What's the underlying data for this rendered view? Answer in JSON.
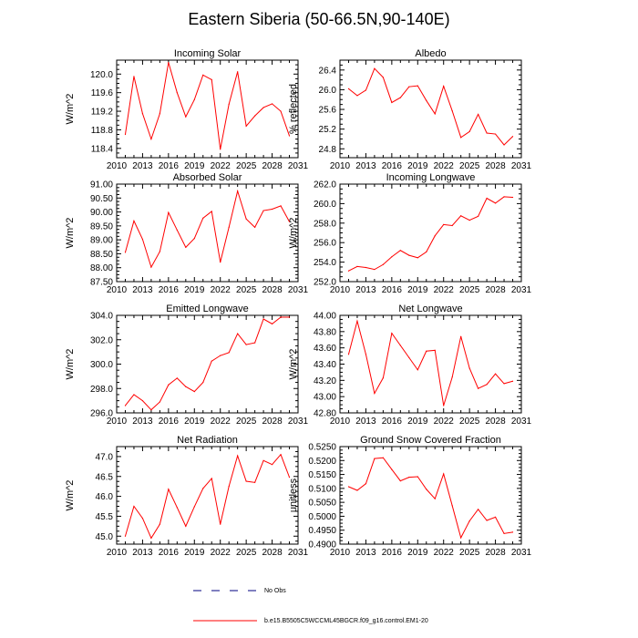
{
  "figure": {
    "title": "Eastern Siberia (50-66.5N,90-140E)",
    "colors": {
      "run": "#ff0000",
      "obs": "#000080",
      "axis": "#000000"
    }
  },
  "legend": {
    "obs_label": "No Obs",
    "run_label": "b.e15.B5505C5WCCML45BGCR.f09_g16.control.EM1-20"
  },
  "chart_data": [
    {
      "type": "line",
      "title": "Incoming Solar",
      "xlabel": "",
      "ylabel": "W/m^2",
      "xlim": [
        2010,
        2031
      ],
      "xticks": [
        2010,
        2013,
        2016,
        2019,
        2022,
        2025,
        2028,
        2031
      ],
      "ylim": [
        118.2,
        120.3
      ],
      "yticks": [
        118.4,
        118.8,
        119.2,
        119.6,
        120.0
      ],
      "ytick_labels": [
        "118.4",
        "118.8",
        "119.2",
        "119.6",
        "120.0"
      ],
      "x": [
        2011,
        2012,
        2013,
        2014,
        2015,
        2016,
        2017,
        2018,
        2019,
        2020,
        2021,
        2022,
        2023,
        2024,
        2025,
        2026,
        2027,
        2028,
        2029,
        2030
      ],
      "series": [
        {
          "values": [
            118.7,
            119.95,
            119.15,
            118.6,
            119.15,
            120.25,
            119.6,
            119.08,
            119.45,
            119.98,
            119.88,
            118.38,
            119.35,
            120.05,
            118.88,
            119.1,
            119.28,
            119.36,
            119.2,
            118.67
          ]
        }
      ]
    },
    {
      "type": "line",
      "title": "Albedo",
      "xlabel": "",
      "ylabel": "% reflected",
      "xlim": [
        2010,
        2031
      ],
      "xticks": [
        2010,
        2013,
        2016,
        2019,
        2022,
        2025,
        2028,
        2031
      ],
      "ylim": [
        24.62,
        26.6
      ],
      "yticks": [
        24.8,
        25.2,
        25.6,
        26.0,
        26.4
      ],
      "ytick_labels": [
        "24.8",
        "25.2",
        "25.6",
        "26.0",
        "26.4"
      ],
      "x": [
        2011,
        2012,
        2013,
        2014,
        2015,
        2016,
        2017,
        2018,
        2019,
        2020,
        2021,
        2022,
        2023,
        2024,
        2025,
        2026,
        2027,
        2028,
        2029,
        2030
      ],
      "series": [
        {
          "values": [
            26.02,
            25.88,
            25.99,
            26.43,
            26.25,
            25.74,
            25.84,
            26.06,
            26.08,
            25.78,
            25.51,
            26.07,
            25.57,
            25.03,
            25.15,
            25.5,
            25.12,
            25.1,
            24.88,
            25.05
          ]
        }
      ]
    },
    {
      "type": "line",
      "title": "Absorbed Solar",
      "xlabel": "",
      "ylabel": "W/m^2",
      "xlim": [
        2010,
        2031
      ],
      "xticks": [
        2010,
        2013,
        2016,
        2019,
        2022,
        2025,
        2028,
        2031
      ],
      "ylim": [
        87.5,
        91.0
      ],
      "yticks": [
        87.5,
        88.0,
        88.5,
        89.0,
        89.5,
        90.0,
        90.5,
        91.0
      ],
      "ytick_labels": [
        "87.50",
        "88.00",
        "88.50",
        "89.00",
        "89.50",
        "90.00",
        "90.50",
        "91.00"
      ],
      "x": [
        2011,
        2012,
        2013,
        2014,
        2015,
        2016,
        2017,
        2018,
        2019,
        2020,
        2021,
        2022,
        2023,
        2024,
        2025,
        2026,
        2027,
        2028,
        2029,
        2030
      ],
      "series": [
        {
          "values": [
            88.55,
            89.68,
            89.02,
            88.02,
            88.58,
            89.98,
            89.35,
            88.73,
            89.05,
            89.78,
            90.02,
            88.2,
            89.45,
            90.75,
            89.75,
            89.45,
            90.05,
            90.1,
            90.22,
            89.65
          ]
        }
      ]
    },
    {
      "type": "line",
      "title": "Incoming Longwave",
      "xlabel": "",
      "ylabel": "W/m^2",
      "xlim": [
        2010,
        2031
      ],
      "xticks": [
        2010,
        2013,
        2016,
        2019,
        2022,
        2025,
        2028,
        2031
      ],
      "ylim": [
        252.0,
        262.0
      ],
      "yticks": [
        252.0,
        254.0,
        256.0,
        258.0,
        260.0,
        262.0
      ],
      "ytick_labels": [
        "252.0",
        "254.0",
        "256.0",
        "258.0",
        "260.0",
        "262.0"
      ],
      "x": [
        2011,
        2012,
        2013,
        2014,
        2015,
        2016,
        2017,
        2018,
        2019,
        2020,
        2021,
        2022,
        2023,
        2024,
        2025,
        2026,
        2027,
        2028,
        2029,
        2030
      ],
      "series": [
        {
          "values": [
            253.1,
            253.55,
            253.45,
            253.25,
            253.75,
            254.55,
            255.2,
            254.7,
            254.45,
            255.05,
            256.7,
            257.85,
            257.75,
            258.75,
            258.3,
            258.7,
            260.55,
            260.05,
            260.7,
            260.65
          ]
        }
      ]
    },
    {
      "type": "line",
      "title": "Emitted Longwave",
      "xlabel": "",
      "ylabel": "W/m^2",
      "xlim": [
        2010,
        2031
      ],
      "xticks": [
        2010,
        2013,
        2016,
        2019,
        2022,
        2025,
        2028,
        2031
      ],
      "ylim": [
        296.0,
        304.0
      ],
      "yticks": [
        296.0,
        298.0,
        300.0,
        302.0,
        304.0
      ],
      "ytick_labels": [
        "296.0",
        "298.0",
        "300.0",
        "302.0",
        "304.0"
      ],
      "x": [
        2011,
        2012,
        2013,
        2014,
        2015,
        2016,
        2017,
        2018,
        2019,
        2020,
        2021,
        2022,
        2023,
        2024,
        2025,
        2026,
        2027,
        2028,
        2029,
        2030
      ],
      "series": [
        {
          "values": [
            296.6,
            297.5,
            297.0,
            296.25,
            296.9,
            298.3,
            298.85,
            298.15,
            297.75,
            298.5,
            300.25,
            300.7,
            300.95,
            302.5,
            301.6,
            301.75,
            303.7,
            303.3,
            303.85,
            303.85
          ]
        }
      ]
    },
    {
      "type": "line",
      "title": "Net Longwave",
      "xlabel": "",
      "ylabel": "W/m^2",
      "xlim": [
        2010,
        2031
      ],
      "xticks": [
        2010,
        2013,
        2016,
        2019,
        2022,
        2025,
        2028,
        2031
      ],
      "ylim": [
        42.8,
        44.0
      ],
      "yticks": [
        42.8,
        43.0,
        43.2,
        43.4,
        43.6,
        43.8,
        44.0
      ],
      "ytick_labels": [
        "42.80",
        "43.00",
        "43.20",
        "43.40",
        "43.60",
        "43.80",
        "44.00"
      ],
      "x": [
        2011,
        2012,
        2013,
        2014,
        2015,
        2016,
        2017,
        2018,
        2019,
        2020,
        2021,
        2022,
        2023,
        2024,
        2025,
        2026,
        2027,
        2028,
        2029,
        2030
      ],
      "series": [
        {
          "values": [
            43.52,
            43.93,
            43.52,
            43.04,
            43.23,
            43.78,
            43.63,
            43.48,
            43.33,
            43.56,
            43.57,
            42.89,
            43.24,
            43.74,
            43.35,
            43.1,
            43.15,
            43.28,
            43.16,
            43.19
          ]
        }
      ]
    },
    {
      "type": "line",
      "title": "Net Radiation",
      "xlabel": "",
      "ylabel": "W/m^2",
      "xlim": [
        2010,
        2031
      ],
      "xticks": [
        2010,
        2013,
        2016,
        2019,
        2022,
        2025,
        2028,
        2031
      ],
      "ylim": [
        44.8,
        47.25
      ],
      "yticks": [
        45.0,
        45.5,
        46.0,
        46.5,
        47.0
      ],
      "ytick_labels": [
        "45.0",
        "45.5",
        "46.0",
        "46.5",
        "47.0"
      ],
      "x": [
        2011,
        2012,
        2013,
        2014,
        2015,
        2016,
        2017,
        2018,
        2019,
        2020,
        2021,
        2022,
        2023,
        2024,
        2025,
        2026,
        2027,
        2028,
        2029,
        2030
      ],
      "series": [
        {
          "values": [
            45.0,
            45.75,
            45.45,
            44.95,
            45.3,
            46.18,
            45.72,
            45.25,
            45.74,
            46.2,
            46.45,
            45.3,
            46.25,
            47.02,
            46.38,
            46.35,
            46.9,
            46.8,
            47.05,
            46.48
          ]
        }
      ]
    },
    {
      "type": "line",
      "title": "Ground Snow Covered Fraction",
      "xlabel": "",
      "ylabel": "unitless",
      "xlim": [
        2010,
        2031
      ],
      "xticks": [
        2010,
        2013,
        2016,
        2019,
        2022,
        2025,
        2028,
        2031
      ],
      "ylim": [
        0.49,
        0.525
      ],
      "yticks": [
        0.49,
        0.495,
        0.5,
        0.505,
        0.51,
        0.515,
        0.52,
        0.525
      ],
      "ytick_labels": [
        "0.4900",
        "0.4950",
        "0.5000",
        "0.5050",
        "0.5100",
        "0.5150",
        "0.5200",
        "0.5250"
      ],
      "x": [
        2011,
        2012,
        2013,
        2014,
        2015,
        2016,
        2017,
        2018,
        2019,
        2020,
        2021,
        2022,
        2023,
        2024,
        2025,
        2026,
        2027,
        2028,
        2029,
        2030
      ],
      "series": [
        {
          "values": [
            0.5106,
            0.5093,
            0.5117,
            0.5207,
            0.521,
            0.5168,
            0.5127,
            0.514,
            0.5142,
            0.5097,
            0.5063,
            0.5152,
            0.5038,
            0.4923,
            0.4983,
            0.5025,
            0.4985,
            0.4997,
            0.4938,
            0.4943
          ]
        }
      ]
    }
  ]
}
